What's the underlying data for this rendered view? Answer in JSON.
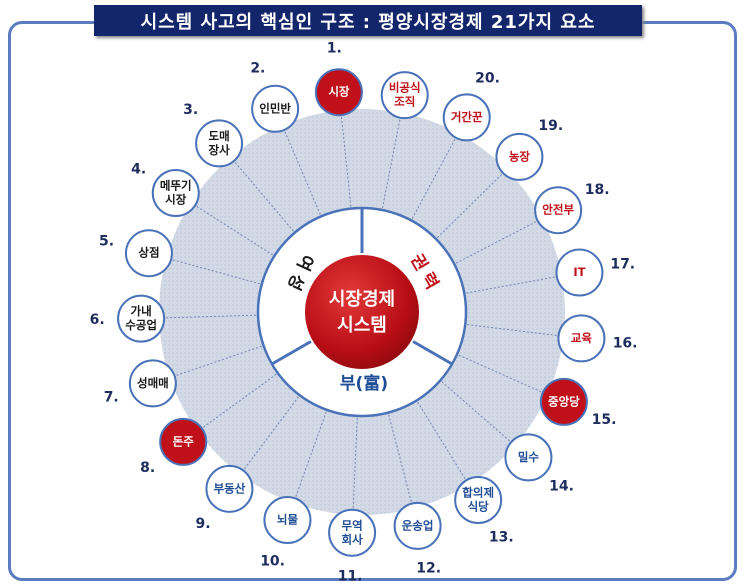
{
  "title": "시스템 사고의 핵심인 구조 : 평양시장경제 21가지 요소",
  "center": {
    "line1": "시장경제",
    "line2": "시스템"
  },
  "sectors": [
    {
      "label": "여 성",
      "color": "#1a1a1a"
    },
    {
      "label": "권 력",
      "color": "#c0101a"
    },
    {
      "label": "부(富)",
      "color": "#1f4e96"
    }
  ],
  "elements": [
    {
      "number": "1.",
      "label": "시장",
      "highlight": true,
      "text_color": "#ffffff"
    },
    {
      "number": "2.",
      "label": "인민반",
      "highlight": false,
      "text_color": "#1a1a1a"
    },
    {
      "number": "3.",
      "label": "도매\n장사",
      "highlight": false,
      "text_color": "#1a1a1a"
    },
    {
      "number": "4.",
      "label": "메뚜기\n시장",
      "highlight": false,
      "text_color": "#1a1a1a"
    },
    {
      "number": "5.",
      "label": "상점",
      "highlight": false,
      "text_color": "#1a1a1a"
    },
    {
      "number": "6.",
      "label": "가내\n수공업",
      "highlight": false,
      "text_color": "#1a1a1a"
    },
    {
      "number": "7.",
      "label": "성매매",
      "highlight": false,
      "text_color": "#1a1a1a"
    },
    {
      "number": "8.",
      "label": "돈주",
      "highlight": true,
      "text_color": "#ffffff"
    },
    {
      "number": "9.",
      "label": "부동산",
      "highlight": false,
      "text_color": "#1f4e96"
    },
    {
      "number": "10.",
      "label": "뇌물",
      "highlight": false,
      "text_color": "#1f4e96"
    },
    {
      "number": "11.",
      "label": "무역\n회사",
      "highlight": false,
      "text_color": "#1f4e96"
    },
    {
      "number": "12.",
      "label": "운송업",
      "highlight": false,
      "text_color": "#1f4e96"
    },
    {
      "number": "13.",
      "label": "합의제\n식당",
      "highlight": false,
      "text_color": "#1f4e96"
    },
    {
      "number": "14.",
      "label": "밀수",
      "highlight": false,
      "text_color": "#1f4e96"
    },
    {
      "number": "15.",
      "label": "중앙당",
      "highlight": true,
      "text_color": "#ffffff"
    },
    {
      "number": "16.",
      "label": "교육",
      "highlight": false,
      "text_color": "#c0101a"
    },
    {
      "number": "17.",
      "label": "IT",
      "highlight": false,
      "text_color": "#c0101a"
    },
    {
      "number": "18.",
      "label": "안전부",
      "highlight": false,
      "text_color": "#c0101a"
    },
    {
      "number": "19.",
      "label": "농장",
      "highlight": false,
      "text_color": "#c0101a"
    },
    {
      "number": "20.",
      "label": "거간꾼",
      "highlight": false,
      "text_color": "#c0101a"
    },
    {
      "number": "",
      "label": "비공식\n조직",
      "highlight": false,
      "text_color": "#c0101a"
    }
  ],
  "colors": {
    "highlight_fill": "#c0101a",
    "node_fill": "#ffffff",
    "node_stroke": "#4a72b8",
    "ring_fill": "#d3dae6",
    "number_color": "#1f2d5e"
  }
}
